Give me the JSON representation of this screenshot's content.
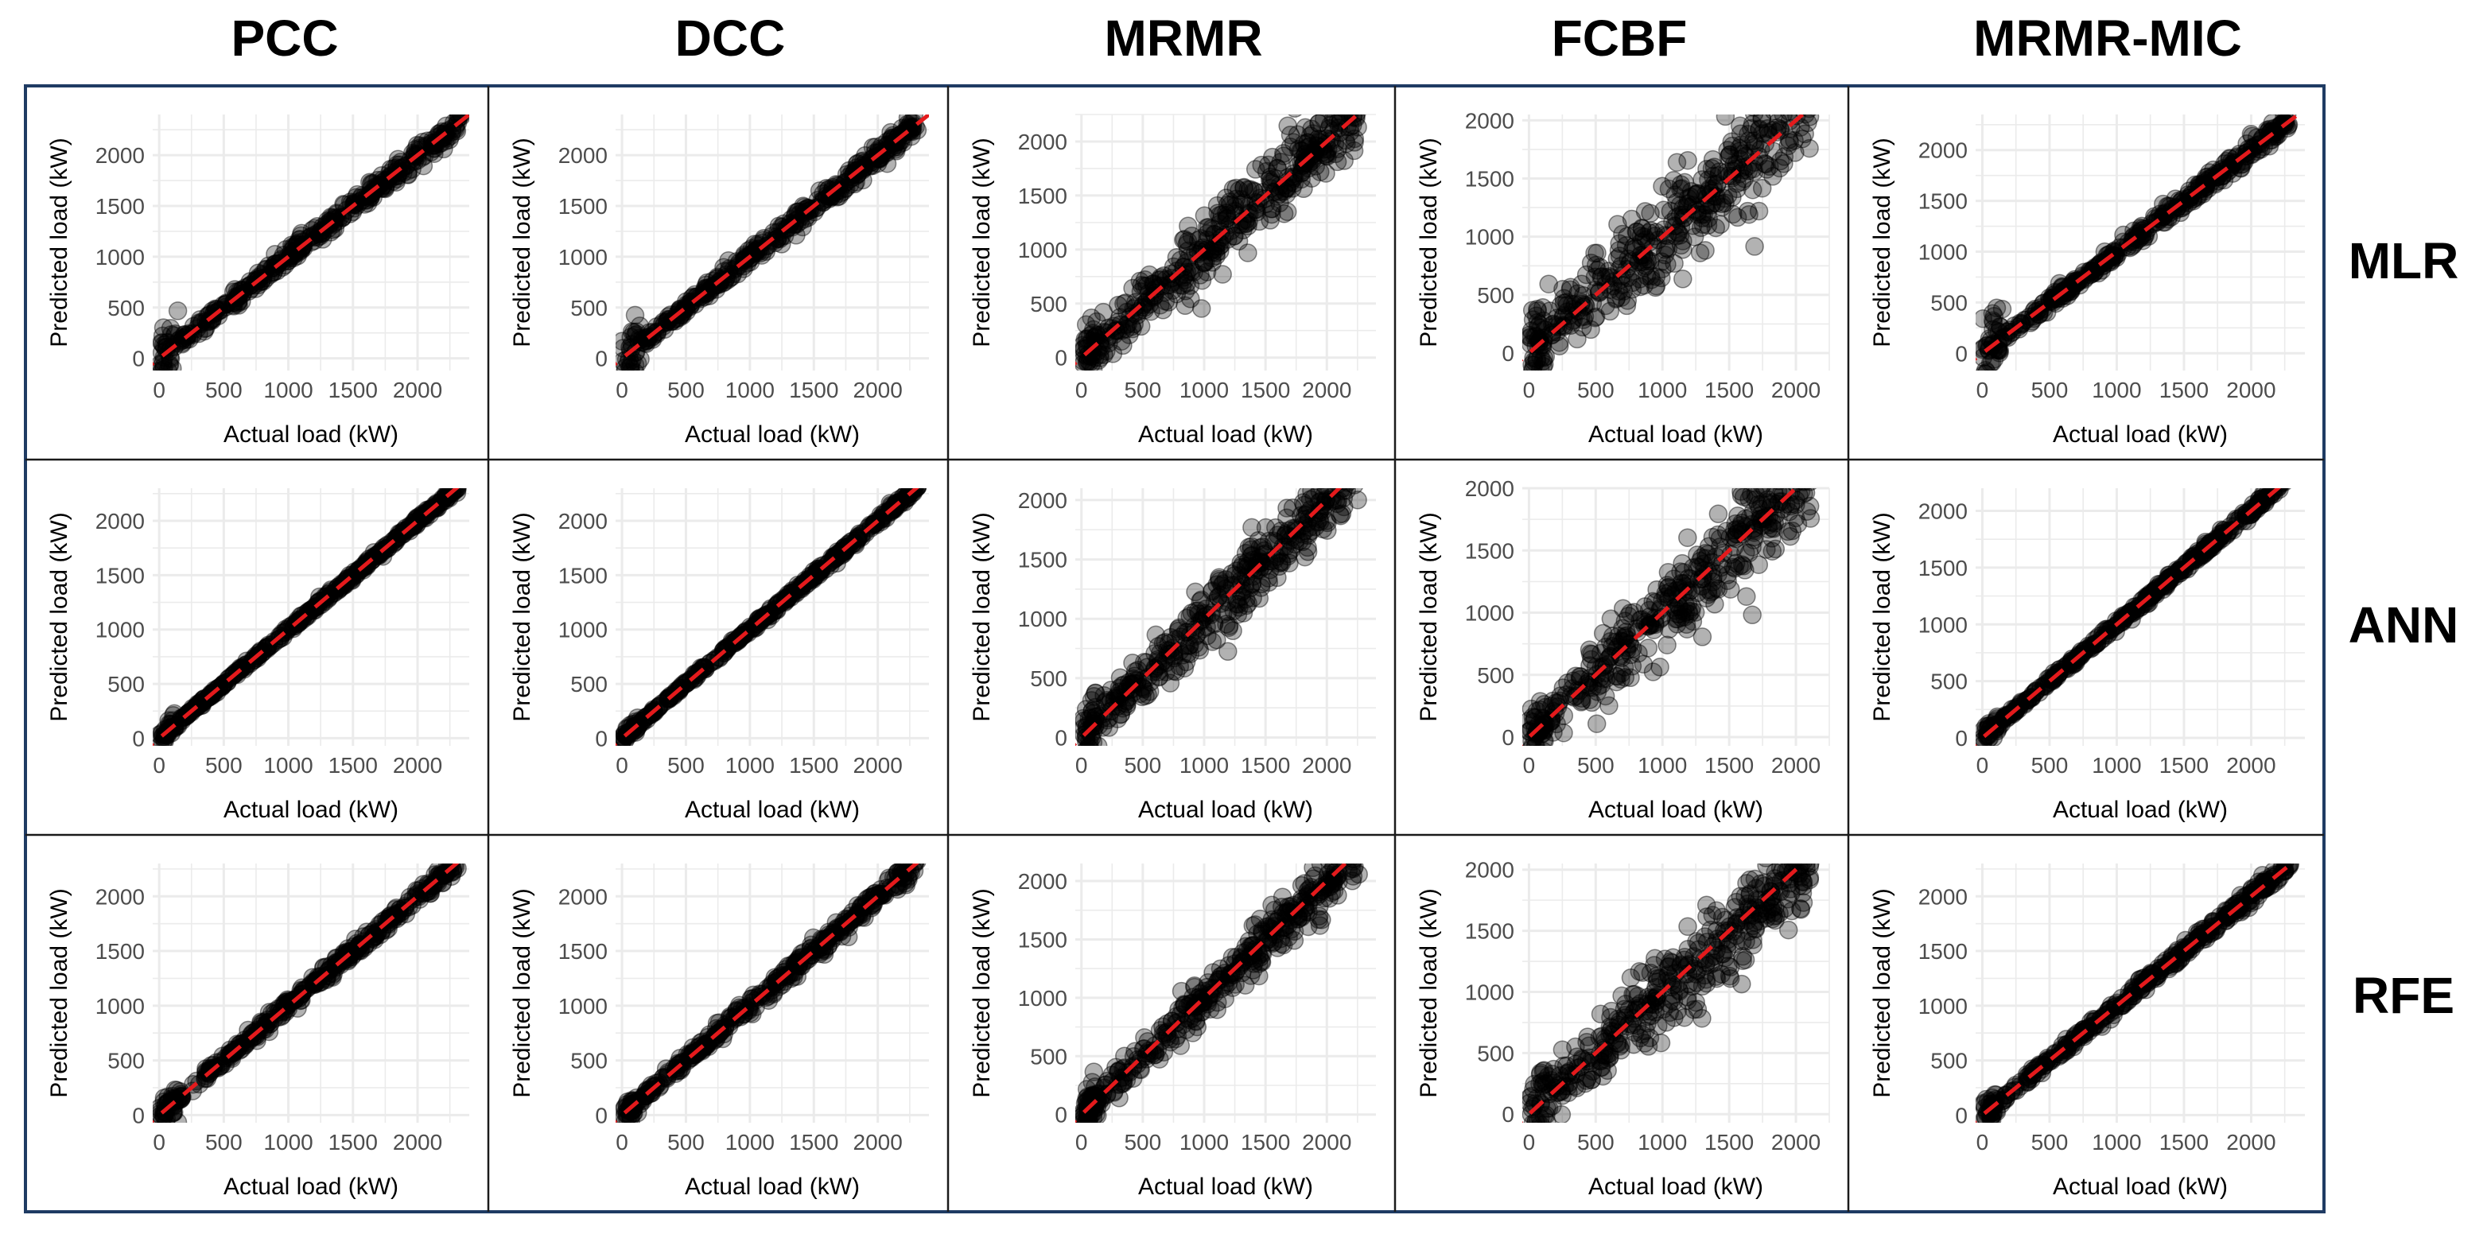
{
  "chart_data": {
    "type": "scatter",
    "column_labels": [
      "PCC",
      "DCC",
      "MRMR",
      "FCBF",
      "MRMR-MIC"
    ],
    "row_labels": [
      "MLR",
      "ANN",
      "RFE"
    ],
    "xlabel": "Actual load (kW)",
    "ylabel": "Predicted load (kW)",
    "x_ticks": [
      "0",
      "500",
      "1000",
      "1500",
      "2000"
    ],
    "y_ticks": [
      "0",
      "500",
      "1000",
      "1500",
      "2000"
    ],
    "reference_line": {
      "style": "dashed",
      "color": "#e41a1c",
      "slope": 1,
      "intercept": 0
    },
    "point_color": "#000000",
    "point_opacity": 0.3,
    "panels": [
      {
        "row": "MLR",
        "method": "PCC",
        "xlim": [
          -50,
          2400
        ],
        "ylim": [
          -120,
          2400
        ],
        "noise": 45,
        "xmax": 2380,
        "lowspread": 150
      },
      {
        "row": "MLR",
        "method": "DCC",
        "xlim": [
          -50,
          2400
        ],
        "ylim": [
          -120,
          2400
        ],
        "noise": 45,
        "xmax": 2350,
        "lowspread": 150
      },
      {
        "row": "MLR",
        "method": "MRMR",
        "xlim": [
          -50,
          2400
        ],
        "ylim": [
          -120,
          2250
        ],
        "noise": 160,
        "xmax": 2300,
        "lowspread": 150
      },
      {
        "row": "MLR",
        "method": "FCBF",
        "xlim": [
          -50,
          2250
        ],
        "ylim": [
          -150,
          2050
        ],
        "noise": 210,
        "xmax": 2150,
        "lowspread": 200
      },
      {
        "row": "MLR",
        "method": "MRMR-MIC",
        "xlim": [
          -50,
          2400
        ],
        "ylim": [
          -170,
          2350
        ],
        "noise": 45,
        "xmax": 2320,
        "lowspread": 180
      },
      {
        "row": "ANN",
        "method": "PCC",
        "xlim": [
          -50,
          2400
        ],
        "ylim": [
          -70,
          2300
        ],
        "noise": 15,
        "xmax": 2350,
        "lowspread": 40
      },
      {
        "row": "ANN",
        "method": "DCC",
        "xlim": [
          -50,
          2400
        ],
        "ylim": [
          -70,
          2300
        ],
        "noise": 15,
        "xmax": 2350,
        "lowspread": 40
      },
      {
        "row": "ANN",
        "method": "MRMR",
        "xlim": [
          -50,
          2400
        ],
        "ylim": [
          -70,
          2100
        ],
        "noise": 140,
        "xmax": 2300,
        "lowspread": 120
      },
      {
        "row": "ANN",
        "method": "FCBF",
        "xlim": [
          -50,
          2250
        ],
        "ylim": [
          -70,
          2000
        ],
        "noise": 180,
        "xmax": 2150,
        "lowspread": 150
      },
      {
        "row": "ANN",
        "method": "MRMR-MIC",
        "xlim": [
          -50,
          2400
        ],
        "ylim": [
          -70,
          2200
        ],
        "noise": 20,
        "xmax": 2300,
        "lowspread": 50
      },
      {
        "row": "RFE",
        "method": "PCC",
        "xlim": [
          -50,
          2400
        ],
        "ylim": [
          -70,
          2300
        ],
        "noise": 35,
        "xmax": 2350,
        "lowspread": 60
      },
      {
        "row": "RFE",
        "method": "DCC",
        "xlim": [
          -50,
          2400
        ],
        "ylim": [
          -70,
          2300
        ],
        "noise": 40,
        "xmax": 2350,
        "lowspread": 60
      },
      {
        "row": "RFE",
        "method": "MRMR",
        "xlim": [
          -50,
          2400
        ],
        "ylim": [
          -70,
          2150
        ],
        "noise": 100,
        "xmax": 2300,
        "lowspread": 80
      },
      {
        "row": "RFE",
        "method": "FCBF",
        "xlim": [
          -50,
          2250
        ],
        "ylim": [
          -70,
          2050
        ],
        "noise": 170,
        "xmax": 2150,
        "lowspread": 130
      },
      {
        "row": "RFE",
        "method": "MRMR-MIC",
        "xlim": [
          -50,
          2400
        ],
        "ylim": [
          -70,
          2300
        ],
        "noise": 30,
        "xmax": 2330,
        "lowspread": 60
      }
    ]
  }
}
